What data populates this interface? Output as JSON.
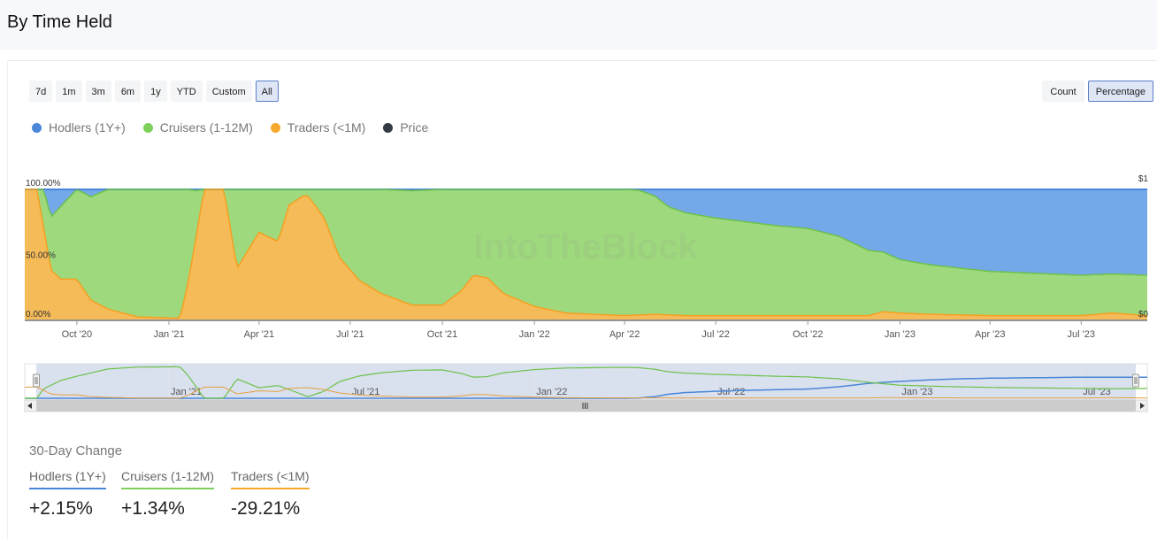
{
  "page": {
    "title": "By Time Held"
  },
  "controls": {
    "ranges": [
      "7d",
      "1m",
      "3m",
      "6m",
      "1y",
      "YTD",
      "Custom",
      "All"
    ],
    "active_range": "All",
    "modes": [
      "Count",
      "Percentage"
    ],
    "active_mode": "Percentage"
  },
  "legend": [
    {
      "label": "Hodlers (1Y+)",
      "color": "#4a86d8"
    },
    {
      "label": "Cruisers (1-12M)",
      "color": "#7fcf5c"
    },
    {
      "label": "Traders (<1M)",
      "color": "#f5a92e"
    },
    {
      "label": "Price",
      "color": "#333a44"
    }
  ],
  "watermark": "IntoTheBlock",
  "chart_data": {
    "type": "area",
    "stacked": true,
    "unit": "percent",
    "ylim": [
      0,
      100
    ],
    "y_ticks": [
      "100.00%",
      "50.00%",
      "0.00%"
    ],
    "y2_ticks": [
      "$1",
      "$0"
    ],
    "x_ticks": [
      "Oct '20",
      "Jan '21",
      "Apr '21",
      "Jul '21",
      "Oct '21",
      "Jan '22",
      "Apr '22",
      "Jul '22",
      "Oct '22",
      "Jan '23",
      "Apr '23",
      "Jul '23"
    ],
    "navigator_ticks": [
      "Jan '21",
      "Jul '21",
      "Jan '22",
      "Jul '22",
      "Jan '23",
      "Jul '23"
    ],
    "x_start": "2020-08-10",
    "x_end": "2023-09-05",
    "series": [
      {
        "name": "Hodlers (1Y+)",
        "color": "#74a8e8",
        "points": [
          [
            "2020-08-10",
            0
          ],
          [
            "2022-04-01",
            0
          ],
          [
            "2022-04-15",
            1
          ],
          [
            "2022-05-01",
            5
          ],
          [
            "2022-05-15",
            13
          ],
          [
            "2022-06-01",
            18
          ],
          [
            "2022-07-01",
            22
          ],
          [
            "2022-08-01",
            25
          ],
          [
            "2022-09-01",
            27
          ],
          [
            "2022-10-01",
            29
          ],
          [
            "2022-11-01",
            36
          ],
          [
            "2022-12-01",
            47
          ],
          [
            "2023-01-01",
            53
          ],
          [
            "2023-02-01",
            58
          ],
          [
            "2023-03-01",
            61
          ],
          [
            "2023-04-01",
            63
          ],
          [
            "2023-05-01",
            64
          ],
          [
            "2023-06-01",
            65
          ],
          [
            "2023-07-01",
            66
          ],
          [
            "2023-08-01",
            66
          ],
          [
            "2023-09-05",
            66
          ]
        ]
      },
      {
        "name": "Cruisers (1-12M)",
        "color": "#9fd97d",
        "points": [
          [
            "2020-08-10",
            0
          ],
          [
            "2020-08-22",
            0
          ],
          [
            "2020-08-29",
            30
          ],
          [
            "2020-09-15",
            56
          ],
          [
            "2020-10-01",
            69
          ],
          [
            "2020-11-01",
            92
          ],
          [
            "2020-12-01",
            98
          ],
          [
            "2021-01-12",
            99
          ],
          [
            "2021-01-20",
            72
          ],
          [
            "2021-02-05",
            0
          ],
          [
            "2021-02-25",
            0
          ],
          [
            "2021-03-10",
            61
          ],
          [
            "2021-03-20",
            48
          ],
          [
            "2021-04-01",
            33
          ],
          [
            "2021-04-20",
            40
          ],
          [
            "2021-05-20",
            5
          ],
          [
            "2021-06-05",
            22
          ],
          [
            "2021-06-20",
            52
          ],
          [
            "2021-07-10",
            70
          ],
          [
            "2021-08-01",
            80
          ],
          [
            "2021-09-01",
            88
          ],
          [
            "2021-10-01",
            89
          ],
          [
            "2021-10-20",
            78
          ],
          [
            "2021-11-01",
            66
          ],
          [
            "2021-11-15",
            68
          ],
          [
            "2021-12-01",
            80
          ],
          [
            "2022-01-01",
            90
          ],
          [
            "2022-02-01",
            95
          ],
          [
            "2022-03-01",
            96
          ],
          [
            "2022-04-01",
            97
          ],
          [
            "2022-04-15",
            96
          ],
          [
            "2022-05-01",
            91
          ],
          [
            "2022-05-15",
            83
          ],
          [
            "2022-06-01",
            79
          ],
          [
            "2022-07-01",
            75
          ],
          [
            "2022-08-01",
            72
          ],
          [
            "2022-09-01",
            69
          ],
          [
            "2022-10-01",
            67
          ],
          [
            "2022-11-01",
            61
          ],
          [
            "2022-12-01",
            50
          ],
          [
            "2023-01-01",
            41
          ],
          [
            "2023-02-01",
            38
          ],
          [
            "2023-03-01",
            36
          ],
          [
            "2023-04-01",
            34
          ],
          [
            "2023-05-01",
            33
          ],
          [
            "2023-06-01",
            32
          ],
          [
            "2023-07-01",
            31
          ],
          [
            "2023-08-01",
            30
          ],
          [
            "2023-09-05",
            31
          ]
        ]
      },
      {
        "name": "Traders (<1M)",
        "color": "#f5bb58",
        "points": [
          [
            "2020-08-10",
            100
          ],
          [
            "2020-08-22",
            100
          ],
          [
            "2020-08-29",
            70
          ],
          [
            "2020-09-05",
            38
          ],
          [
            "2020-09-15",
            31
          ],
          [
            "2020-10-01",
            31
          ],
          [
            "2020-10-15",
            15
          ],
          [
            "2020-11-01",
            8
          ],
          [
            "2020-12-01",
            2
          ],
          [
            "2021-01-12",
            1
          ],
          [
            "2021-01-20",
            28
          ],
          [
            "2021-01-28",
            63
          ],
          [
            "2021-02-05",
            100
          ],
          [
            "2021-02-25",
            100
          ],
          [
            "2021-03-10",
            39
          ],
          [
            "2021-03-20",
            52
          ],
          [
            "2021-04-01",
            67
          ],
          [
            "2021-04-20",
            60
          ],
          [
            "2021-05-01",
            88
          ],
          [
            "2021-05-15",
            95
          ],
          [
            "2021-05-20",
            95
          ],
          [
            "2021-06-05",
            78
          ],
          [
            "2021-06-20",
            48
          ],
          [
            "2021-07-10",
            30
          ],
          [
            "2021-08-01",
            20
          ],
          [
            "2021-09-01",
            11
          ],
          [
            "2021-10-01",
            11
          ],
          [
            "2021-10-20",
            22
          ],
          [
            "2021-11-01",
            34
          ],
          [
            "2021-11-15",
            32
          ],
          [
            "2021-12-01",
            20
          ],
          [
            "2022-01-01",
            10
          ],
          [
            "2022-02-01",
            5
          ],
          [
            "2022-03-01",
            4
          ],
          [
            "2022-04-01",
            3
          ],
          [
            "2022-05-01",
            4
          ],
          [
            "2022-06-01",
            3
          ],
          [
            "2022-08-01",
            3
          ],
          [
            "2022-10-01",
            3
          ],
          [
            "2022-12-01",
            3
          ],
          [
            "2022-12-15",
            6
          ],
          [
            "2023-01-01",
            5
          ],
          [
            "2023-02-01",
            4
          ],
          [
            "2023-04-01",
            3
          ],
          [
            "2023-06-01",
            3
          ],
          [
            "2023-07-01",
            3
          ],
          [
            "2023-08-01",
            5
          ],
          [
            "2023-09-05",
            3
          ]
        ]
      }
    ]
  },
  "change": {
    "title": "30-Day Change",
    "items": [
      {
        "label": "Hodlers (1Y+)",
        "value": "+2.15%",
        "color": "#4a86d8"
      },
      {
        "label": "Cruisers (1-12M)",
        "value": "+1.34%",
        "color": "#7fcf5c"
      },
      {
        "label": "Traders (<1M)",
        "value": "-29.21%",
        "color": "#f5a92e"
      }
    ]
  }
}
